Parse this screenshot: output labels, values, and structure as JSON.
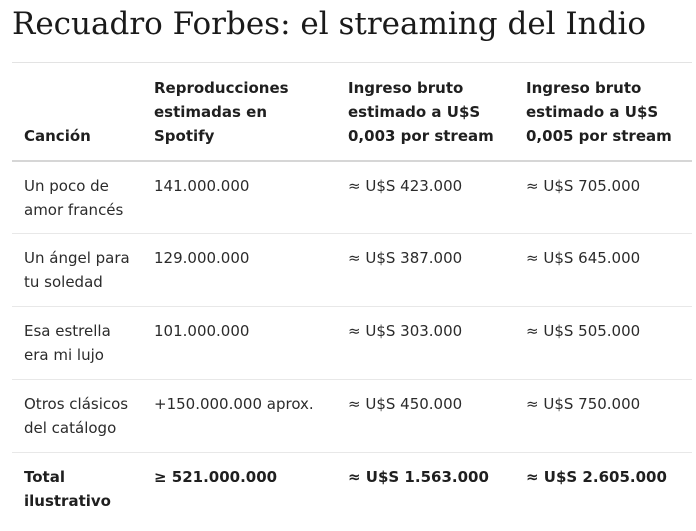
{
  "title": "Recuadro Forbes: el streaming del Indio",
  "table": {
    "headers": [
      "Canción",
      "Reproducciones estimadas en Spotify",
      "Ingreso bruto estimado a U$S 0,003 por stream",
      "Ingreso bruto estimado a U$S 0,005 por stream"
    ],
    "rows": [
      [
        "Un poco de amor francés",
        "141.000.000",
        "≈ U$S 423.000",
        "≈ U$S 705.000"
      ],
      [
        "Un ángel para tu soledad",
        "129.000.000",
        "≈ U$S 387.000",
        "≈ U$S 645.000"
      ],
      [
        "Esa estrella era mi lujo",
        "101.000.000",
        "≈ U$S 303.000",
        "≈ U$S 505.000"
      ],
      [
        "Otros clásicos del catálogo",
        "+150.000.000 aprox.",
        "≈ U$S 450.000",
        "≈ U$S 750.000"
      ]
    ],
    "total": [
      "Total ilustrativo",
      "≥ 521.000.000",
      "≈ U$S 1.563.000",
      "≈ U$S 2.605.000"
    ]
  }
}
